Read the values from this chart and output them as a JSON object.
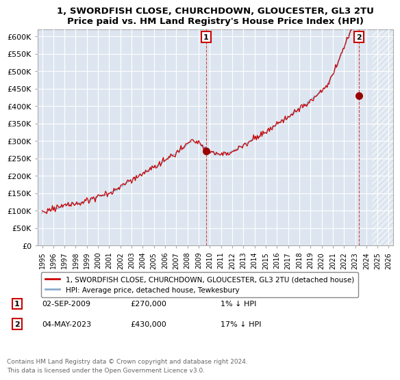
{
  "title": "1, SWORDFISH CLOSE, CHURCHDOWN, GLOUCESTER, GL3 2TU",
  "subtitle": "Price paid vs. HM Land Registry's House Price Index (HPI)",
  "legend_label_red": "1, SWORDFISH CLOSE, CHURCHDOWN, GLOUCESTER, GL3 2TU (detached house)",
  "legend_label_blue": "HPI: Average price, detached house, Tewkesbury",
  "annotation1": {
    "number": "1",
    "date": "02-SEP-2009",
    "price": "£270,000",
    "hpi_diff": "1% ↓ HPI",
    "year": 2009.67,
    "value": 270000
  },
  "annotation2": {
    "number": "2",
    "date": "04-MAY-2023",
    "price": "£430,000",
    "hpi_diff": "17% ↓ HPI",
    "year": 2023.33,
    "value": 430000
  },
  "footer1": "Contains HM Land Registry data © Crown copyright and database right 2024.",
  "footer2": "This data is licensed under the Open Government Licence v3.0.",
  "ylim": [
    0,
    620000
  ],
  "yticks": [
    0,
    50000,
    100000,
    150000,
    200000,
    250000,
    300000,
    350000,
    400000,
    450000,
    500000,
    550000,
    600000
  ],
  "xlim_left": 1994.6,
  "xlim_right": 2026.4,
  "bg_color": "#dde6f0",
  "grid_color": "#ffffff",
  "line_color_red": "#cc0000",
  "line_color_blue": "#88aacc",
  "title_color": "#000000",
  "future_shade_start": 2024.5
}
